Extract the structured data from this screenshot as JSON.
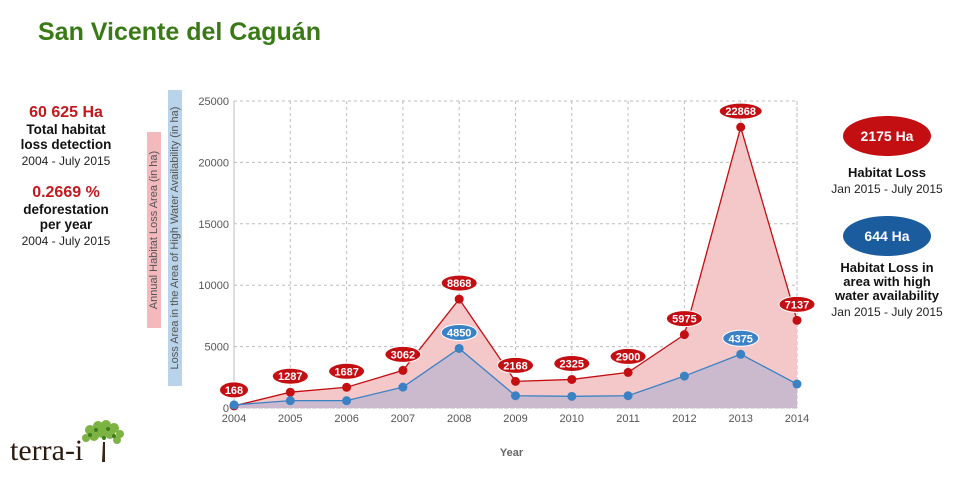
{
  "page": {
    "title": "San Vicente del Caguán"
  },
  "left_stats": [
    {
      "value": "60 625 Ha",
      "label_line1": "Total habitat",
      "label_line2": "loss detection",
      "period": "2004 - July 2015"
    },
    {
      "value": "0.2669 %",
      "label_line1": "deforestation",
      "label_line2": "per year",
      "period": "2004 - July 2015"
    }
  ],
  "right_panel": {
    "habitat_loss": {
      "value": "2175 Ha",
      "label": "Habitat Loss",
      "period": "Jan 2015 - July 2015"
    },
    "water_loss": {
      "value": "644 Ha",
      "label_line1": "Habitat Loss in",
      "label_line2": "area with high",
      "label_line3": "water availability",
      "period": "Jan 2015 - July 2015"
    }
  },
  "logo": {
    "text": "terra-i"
  },
  "colors": {
    "title": "#3a7a16",
    "red": "#c30e12",
    "blue": "#3a82c4",
    "red_fill": "#f4c7c9",
    "blue_fill": "#c3b6cf"
  },
  "chart_data": {
    "type": "area",
    "x": [
      "2004",
      "2005",
      "2006",
      "2007",
      "2008",
      "2009",
      "2010",
      "2011",
      "2012",
      "2013",
      "2014"
    ],
    "xlabel": "Year",
    "ylabel_red": "Annual Habitat Loss Area (in ha)",
    "ylabel_blue": "Loss Area in the Area of High Water Availability (in ha)",
    "ylim": [
      0,
      25000
    ],
    "yticks": [
      0,
      5000,
      10000,
      15000,
      20000,
      25000
    ],
    "grid": true,
    "series": [
      {
        "key": "annual_loss",
        "color": "#c30e12",
        "values": [
          168,
          1287,
          1687,
          3062,
          8868,
          2168,
          2325,
          2900,
          5975,
          22868,
          7137
        ],
        "labels": [
          "168",
          "1287",
          "1687",
          "3062",
          "8868",
          "2168",
          "2325",
          "2900",
          "5975",
          "22868",
          "7137"
        ]
      },
      {
        "key": "water_loss",
        "color": "#3a82c4",
        "values": [
          250,
          600,
          600,
          1700,
          4850,
          1000,
          950,
          1000,
          2600,
          4375,
          1950
        ],
        "labels": [
          null,
          null,
          null,
          null,
          "4850",
          null,
          null,
          null,
          null,
          "4375",
          null
        ]
      }
    ]
  }
}
